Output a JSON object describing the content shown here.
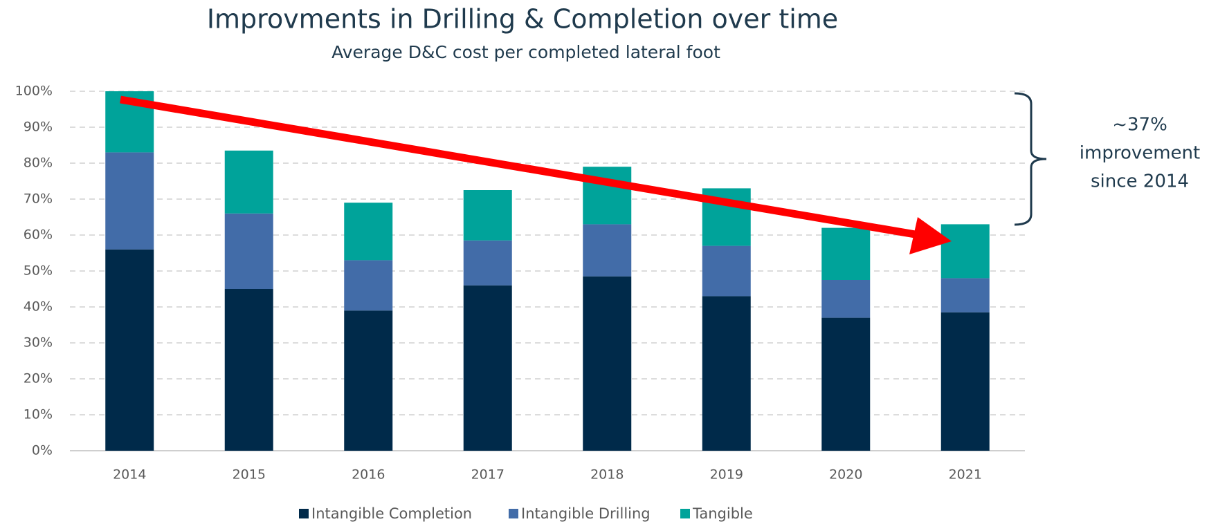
{
  "chart_data": {
    "type": "stacked_bar",
    "title": "Improvments in Drilling & Completion over time",
    "subtitle": "Average D&C cost per completed lateral foot",
    "categories": [
      "2014",
      "2015",
      "2016",
      "2017",
      "2018",
      "2019",
      "2020",
      "2021"
    ],
    "series": [
      {
        "name": "Intangible Completion",
        "color": "#002a4a",
        "values": [
          56,
          45,
          39,
          46,
          48.5,
          43,
          37,
          38.5
        ]
      },
      {
        "name": "Intangible Drilling",
        "color": "#426ca8",
        "values": [
          27,
          21,
          14,
          12.5,
          14.5,
          14,
          10.5,
          9.5
        ]
      },
      {
        "name": "Tangible",
        "color": "#00a39a",
        "values": [
          17,
          17.5,
          16,
          14,
          16,
          16,
          14.5,
          15
        ]
      }
    ],
    "ylim": [
      0,
      100
    ],
    "yticks": [
      {
        "value": 0,
        "label": "0%"
      },
      {
        "value": 10,
        "label": "10%"
      },
      {
        "value": 20,
        "label": "20%"
      },
      {
        "value": 30,
        "label": "30%"
      },
      {
        "value": 40,
        "label": "40%"
      },
      {
        "value": 50,
        "label": "50%"
      },
      {
        "value": 60,
        "label": "60%"
      },
      {
        "value": 70,
        "label": "70%"
      },
      {
        "value": 80,
        "label": "80%"
      },
      {
        "value": 90,
        "label": "90%"
      },
      {
        "value": 100,
        "label": "100%"
      }
    ],
    "grid": true,
    "legend": "bottom",
    "annotation": [
      "~37%",
      "improvement",
      "since 2014"
    ]
  }
}
